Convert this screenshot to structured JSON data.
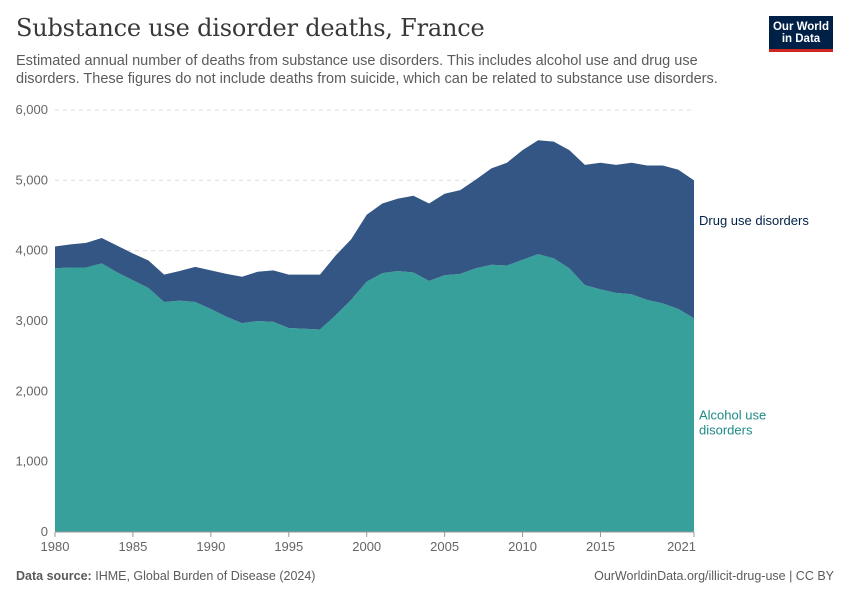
{
  "header": {
    "title": "Substance use disorder deaths, France",
    "subtitle": "Estimated annual number of deaths from substance use disorders. This includes alcohol use and drug use disorders. These figures do not include deaths from suicide, which can be related to substance use disorders."
  },
  "logo": {
    "line1": "Our World",
    "line2": "in Data",
    "bg_color": "#002147",
    "accent_color": "#ce261e"
  },
  "footer": {
    "source_label": "Data source:",
    "source_text": "IHME, Global Burden of Disease (2024)",
    "url_text": "OurWorldinData.org/illicit-drug-use | CC BY"
  },
  "chart_data": {
    "type": "area",
    "stacked": true,
    "x": [
      1980,
      1981,
      1982,
      1983,
      1984,
      1985,
      1986,
      1987,
      1988,
      1989,
      1990,
      1991,
      1992,
      1993,
      1994,
      1995,
      1996,
      1997,
      1998,
      1999,
      2000,
      2001,
      2002,
      2003,
      2004,
      2005,
      2006,
      2007,
      2008,
      2009,
      2010,
      2011,
      2012,
      2013,
      2014,
      2015,
      2016,
      2017,
      2018,
      2019,
      2020,
      2021
    ],
    "series": [
      {
        "name": "Alcohol use disorders",
        "color": "#38a09b",
        "label_color": "#1e8a86",
        "values": [
          3750,
          3760,
          3760,
          3820,
          3690,
          3580,
          3470,
          3270,
          3290,
          3270,
          3170,
          3060,
          2970,
          3000,
          2990,
          2900,
          2890,
          2880,
          3080,
          3300,
          3560,
          3680,
          3710,
          3690,
          3570,
          3650,
          3670,
          3750,
          3800,
          3790,
          3870,
          3950,
          3890,
          3750,
          3510,
          3450,
          3400,
          3380,
          3300,
          3250,
          3170,
          3040
        ]
      },
      {
        "name": "Drug use disorders",
        "color": "#335684",
        "label_color": "#002147",
        "values": [
          310,
          330,
          350,
          360,
          380,
          380,
          390,
          390,
          420,
          500,
          550,
          610,
          660,
          700,
          730,
          760,
          770,
          780,
          850,
          860,
          950,
          990,
          1030,
          1090,
          1100,
          1160,
          1190,
          1260,
          1370,
          1460,
          1560,
          1620,
          1660,
          1680,
          1710,
          1800,
          1820,
          1870,
          1910,
          1960,
          1980,
          1960
        ]
      }
    ],
    "xlim": [
      1980,
      2021
    ],
    "ylim": [
      0,
      6000
    ],
    "yticks": [
      0,
      1000,
      2000,
      3000,
      4000,
      5000,
      6000
    ],
    "ytick_labels": [
      "0",
      "1,000",
      "2,000",
      "3,000",
      "4,000",
      "5,000",
      "6,000"
    ],
    "xticks": [
      1980,
      1985,
      1990,
      1995,
      2000,
      2005,
      2010,
      2015,
      2021
    ],
    "xtick_labels": [
      "1980",
      "1985",
      "1990",
      "1995",
      "2000",
      "2005",
      "2010",
      "2015",
      "2021"
    ],
    "grid": true,
    "legend": "right-inline",
    "series_labels": [
      {
        "lines": [
          "Drug use disorders"
        ]
      },
      {
        "lines": [
          "Alcohol use",
          "disorders"
        ]
      }
    ]
  }
}
